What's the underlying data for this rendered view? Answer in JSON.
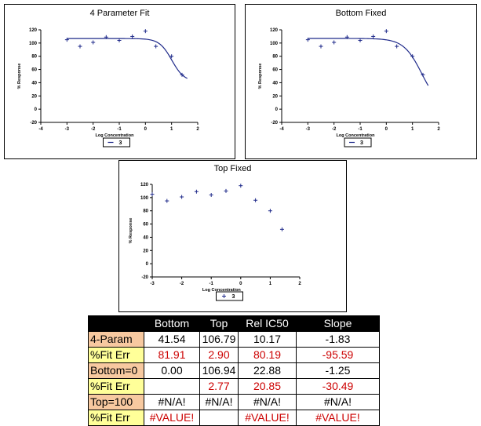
{
  "colors": {
    "curve": "#1f2a8a",
    "marker": "#1f2a8a",
    "row_label_orange": "#f7c9a0",
    "row_label_yellow": "#ffff99",
    "error_text": "#cc0000"
  },
  "chart_data": [
    {
      "type": "scatter",
      "title": "4 Parameter Fit",
      "xlabel": "Log Concentration",
      "ylabel": "% Response",
      "xlim": [
        -4,
        2
      ],
      "ylim": [
        -20,
        120
      ],
      "xticks": [
        -4,
        -3,
        -2,
        -1,
        0,
        1,
        2
      ],
      "yticks": [
        -20,
        0,
        20,
        40,
        60,
        80,
        100,
        120
      ],
      "series": [
        {
          "name": "3",
          "x": [
            -3.0,
            -2.5,
            -2.0,
            -1.5,
            -1.0,
            -0.5,
            0.0,
            0.4,
            1.0,
            1.4
          ],
          "y": [
            105,
            95,
            101,
            109,
            104,
            110,
            118,
            95,
            80,
            52
          ]
        }
      ],
      "fit_curve": {
        "bottom": 41.54,
        "top": 106.79,
        "ic50": 10.17,
        "slope": -1.83,
        "x_range": [
          -3.0,
          1.6
        ]
      },
      "legend": {
        "entry": "3",
        "position": "bottom-center"
      }
    },
    {
      "type": "scatter",
      "title": "Bottom Fixed",
      "xlabel": "Log Concentration",
      "ylabel": "% Response",
      "xlim": [
        -4,
        2
      ],
      "ylim": [
        -20,
        120
      ],
      "xticks": [
        -4,
        -3,
        -2,
        -1,
        0,
        1,
        2
      ],
      "yticks": [
        -20,
        0,
        20,
        40,
        60,
        80,
        100,
        120
      ],
      "series": [
        {
          "name": "3",
          "x": [
            -3.0,
            -2.5,
            -2.0,
            -1.5,
            -1.0,
            -0.5,
            0.0,
            0.4,
            1.0,
            1.4
          ],
          "y": [
            105,
            95,
            101,
            109,
            104,
            110,
            118,
            95,
            80,
            52
          ]
        }
      ],
      "fit_curve": {
        "bottom": 0.0,
        "top": 106.94,
        "ic50": 22.88,
        "slope": -1.25,
        "x_range": [
          -3.0,
          1.6
        ]
      },
      "legend": {
        "entry": "3",
        "position": "bottom-center"
      }
    },
    {
      "type": "scatter",
      "title": "Top Fixed",
      "xlabel": "Log Concentration",
      "ylabel": "% Response",
      "xlim": [
        -3,
        2
      ],
      "ylim": [
        -20,
        120
      ],
      "xticks": [
        -3,
        -2,
        -1,
        0,
        1,
        2
      ],
      "yticks": [
        -20,
        0,
        20,
        40,
        60,
        80,
        100,
        120
      ],
      "series": [
        {
          "name": "3",
          "x": [
            -3.0,
            -2.5,
            -2.0,
            -1.5,
            -1.0,
            -0.5,
            0.0,
            0.5,
            1.0,
            1.4
          ],
          "y": [
            105,
            95,
            101,
            109,
            104,
            110,
            118,
            96,
            80,
            52
          ]
        }
      ],
      "fit_curve": null,
      "legend": {
        "entry": "3",
        "position": "bottom-center"
      }
    }
  ],
  "table": {
    "headers": [
      "",
      "Bottom",
      "Top",
      "Rel IC50",
      "Slope"
    ],
    "rows": [
      {
        "label": "4-Param",
        "label_bg": "orange",
        "values": [
          "41.54",
          "106.79",
          "10.17",
          "-1.83"
        ],
        "red": false
      },
      {
        "label": "%Fit Err",
        "label_bg": "yellow",
        "values": [
          "81.91",
          "2.90",
          "80.19",
          "-95.59"
        ],
        "red": true
      },
      {
        "label": "Bottom=0",
        "label_bg": "orange",
        "values": [
          "0.00",
          "106.94",
          "22.88",
          "-1.25"
        ],
        "red": false
      },
      {
        "label": "%Fit Err",
        "label_bg": "yellow",
        "values": [
          "",
          "2.77",
          "20.85",
          "-30.49"
        ],
        "red": true
      },
      {
        "label": "Top=100",
        "label_bg": "orange",
        "values": [
          "#N/A!",
          "#N/A!",
          "#N/A!",
          "#N/A!"
        ],
        "red": false
      },
      {
        "label": "%Fit Err",
        "label_bg": "yellow",
        "values": [
          "#VALUE!",
          "",
          "#VALUE!",
          "#VALUE!"
        ],
        "red": true
      }
    ]
  }
}
